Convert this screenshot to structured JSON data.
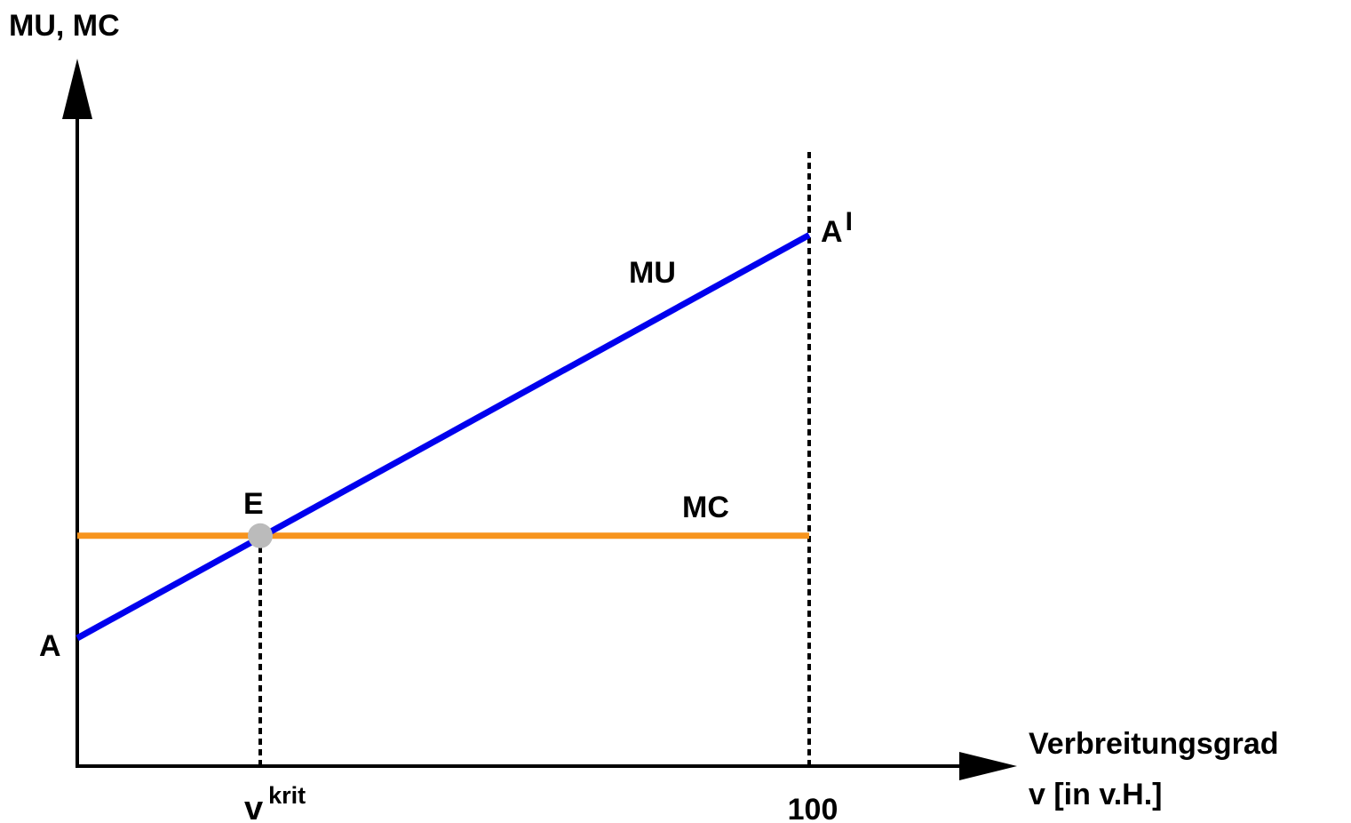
{
  "chart_data": {
    "type": "line",
    "ylabel": "MU, MC",
    "xlabel_line1": "Verbreitungsgrad",
    "xlabel_line2": "v  [in v.H.]",
    "xlim": [
      0,
      115
    ],
    "ylim": [
      0,
      100
    ],
    "x_ticks": [
      {
        "value": 25,
        "base": "v",
        "sup": "krit"
      },
      {
        "value": 100,
        "label": "100"
      }
    ],
    "series": [
      {
        "name": "MU",
        "color": "#0000ee",
        "x": [
          0,
          100
        ],
        "y": [
          20,
          83
        ]
      },
      {
        "name": "MC",
        "color": "#f7941d",
        "x": [
          0,
          100
        ],
        "y": [
          36,
          36
        ]
      }
    ],
    "points": [
      {
        "label": "A",
        "x": 0,
        "y": 20
      },
      {
        "label": "A",
        "prime": "I",
        "x": 100,
        "y": 83
      },
      {
        "label": "E",
        "x": 25,
        "y": 36,
        "color": "#bbbbbb"
      }
    ],
    "reference_lines": [
      {
        "x": 25,
        "y_to": 36,
        "style": "dashed"
      },
      {
        "x": 100,
        "y_to": 96,
        "style": "dashed"
      }
    ],
    "colors": {
      "axis": "#000000",
      "text": "#000000"
    }
  }
}
